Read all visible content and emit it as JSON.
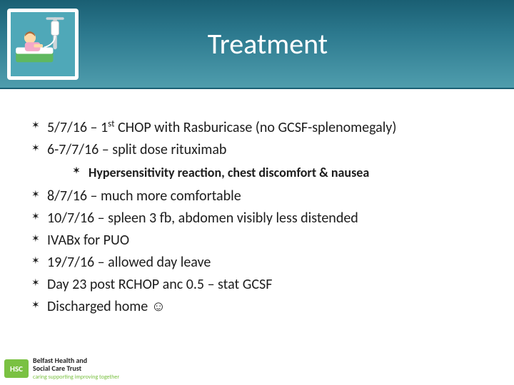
{
  "header": {
    "title": "Treatment",
    "background_gradient": [
      "#1a5f73",
      "#4f9dad"
    ]
  },
  "bullets": {
    "group1": [
      {
        "text_html": "5/7/16 – 1<sup>st</sup> CHOP with Rasburicase (no GCSF-splenomegaly)"
      },
      {
        "text_html": "6-7/7/16 – split dose rituximab"
      }
    ],
    "sub": [
      {
        "text": "Hypersensitivity reaction, chest discomfort & nausea"
      }
    ],
    "group2": [
      {
        "text": " 8/7/16 – much more comfortable"
      },
      {
        "text": "10/7/16 – spleen 3 fb, abdomen visibly less distended"
      },
      {
        "text": "IVABx for PUO"
      },
      {
        "text": "19/7/16 – allowed day leave"
      },
      {
        "text": "Day 23 post RCHOP anc 0.5 – stat GCSF"
      },
      {
        "text": "Discharged home ☺"
      }
    ]
  },
  "logo": {
    "abbr": "HSC",
    "line1": "Belfast Health and",
    "line2": "Social Care Trust",
    "tagline": "caring supporting improving together"
  },
  "colors": {
    "text": "#1d1d1d",
    "bg": "#ffffff",
    "logo_green": "#7ac142"
  }
}
